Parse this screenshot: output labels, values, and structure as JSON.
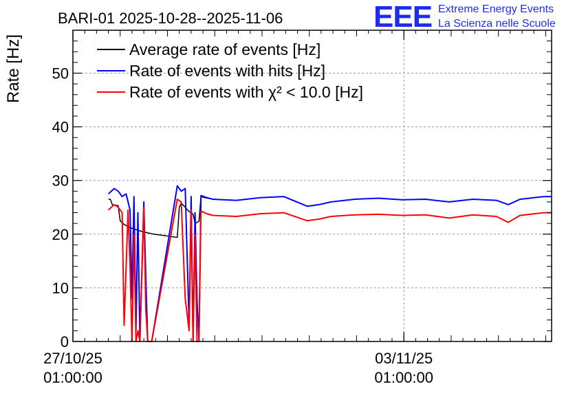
{
  "chart_data": {
    "type": "line",
    "title": "BARI-01 2025-10-28--2025-11-06",
    "ylabel": "Rate [Hz]",
    "xlabel": "",
    "ylim": [
      0,
      58
    ],
    "xlim": [
      "2025-10-27 01:00",
      "2025-11-06 04:00"
    ],
    "yticks": [
      0,
      10,
      20,
      30,
      40,
      50
    ],
    "xticks": [
      {
        "x": "2025-10-27 01:00",
        "date": "27/10/25",
        "time": "01:00:00"
      },
      {
        "x": "2025-11-03 01:00",
        "date": "03/11/25",
        "time": "01:00:00"
      }
    ],
    "grid": true,
    "legend": "top-left",
    "logo": {
      "letters": "EEE",
      "line1": "Extreme Energy Events",
      "line2": "La Scienza nelle Scuole"
    },
    "series": [
      {
        "name": "Average rate of events [Hz]",
        "color": "#000000",
        "x": [
          "2025-10-27 19:00",
          "2025-10-27 20:00",
          "2025-10-27 21:00",
          "2025-10-28 00:00",
          "2025-10-28 01:00",
          "2025-10-28 03:00",
          "2025-10-28 06:00",
          "2025-10-28 12:00",
          "2025-10-28 18:00",
          "2025-10-29 00:00",
          "2025-10-29 06:00",
          "2025-10-29 07:00",
          "2025-10-29 08:00",
          "2025-10-29 10:00",
          "2025-10-29 12:00",
          "2025-10-29 14:00",
          "2025-10-29 15:00",
          "2025-10-29 17:00",
          "2025-10-29 18:00",
          "2025-10-29 20:00",
          "2025-10-29 23:00"
        ],
        "y": [
          26.5,
          26.5,
          25.5,
          25.3,
          22.5,
          21.8,
          21.2,
          20.5,
          20.0,
          19.7,
          19.4,
          25.0,
          25.8,
          25.0,
          24.2,
          23.7,
          22.0,
          22.4,
          27.0,
          26.8,
          26.6
        ]
      },
      {
        "name": "Rate of events with hits [Hz]",
        "color": "#0000ff",
        "x": [
          "2025-10-27 19:00",
          "2025-10-27 22:00",
          "2025-10-28 00:00",
          "2025-10-28 02:00",
          "2025-10-28 04:00",
          "2025-10-28 06:00",
          "2025-10-28 07:00",
          "2025-10-28 08:00",
          "2025-10-28 09:00",
          "2025-10-28 10:00",
          "2025-10-28 11:00",
          "2025-10-28 13:00",
          "2025-10-28 14:00",
          "2025-10-28 15:00",
          "2025-10-28 17:00",
          "2025-10-29 06:00",
          "2025-10-29 08:00",
          "2025-10-29 10:00",
          "2025-10-29 12:00",
          "2025-10-29 13:00",
          "2025-10-29 14:00",
          "2025-10-29 15:00",
          "2025-10-29 16:00",
          "2025-10-29 17:00",
          "2025-10-29 18:00",
          "2025-10-29 21:00",
          "2025-10-30 00:00",
          "2025-10-30 12:00",
          "2025-10-31 00:00",
          "2025-10-31 12:00",
          "2025-11-01 00:00",
          "2025-11-01 06:00",
          "2025-11-01 12:00",
          "2025-11-02 00:00",
          "2025-11-02 12:00",
          "2025-11-03 00:00",
          "2025-11-03 12:00",
          "2025-11-04 00:00",
          "2025-11-04 12:00",
          "2025-11-05 00:00",
          "2025-11-05 06:00",
          "2025-11-05 12:00",
          "2025-11-06 00:00",
          "2025-11-06 04:00"
        ],
        "y": [
          27.5,
          28.5,
          28.0,
          27.0,
          27.5,
          24.5,
          8.0,
          27.0,
          2.0,
          24.0,
          0.0,
          26.0,
          12.0,
          0.0,
          0.0,
          29.0,
          28.0,
          28.5,
          3.0,
          27.0,
          0.0,
          24.0,
          8.0,
          0.0,
          27.2,
          26.8,
          26.5,
          26.3,
          26.8,
          27.0,
          25.2,
          25.5,
          26.0,
          26.5,
          26.7,
          26.4,
          26.5,
          26.0,
          26.5,
          26.3,
          25.5,
          26.5,
          27.0,
          27.0
        ]
      },
      {
        "name": "Rate of events with χ² < 10.0 [Hz]",
        "color": "#ff0000",
        "x": [
          "2025-10-27 19:00",
          "2025-10-27 22:00",
          "2025-10-28 00:00",
          "2025-10-28 02:00",
          "2025-10-28 03:00",
          "2025-10-28 05:00",
          "2025-10-28 06:00",
          "2025-10-28 07:00",
          "2025-10-28 08:00",
          "2025-10-28 09:00",
          "2025-10-28 10:00",
          "2025-10-28 11:00",
          "2025-10-28 13:00",
          "2025-10-28 14:00",
          "2025-10-28 15:00",
          "2025-10-28 17:00",
          "2025-10-29 06:00",
          "2025-10-29 08:00",
          "2025-10-29 10:00",
          "2025-10-29 12:00",
          "2025-10-29 13:00",
          "2025-10-29 14:00",
          "2025-10-29 15:00",
          "2025-10-29 16:00",
          "2025-10-29 17:00",
          "2025-10-29 18:00",
          "2025-10-29 21:00",
          "2025-10-30 00:00",
          "2025-10-30 12:00",
          "2025-10-31 00:00",
          "2025-10-31 12:00",
          "2025-11-01 00:00",
          "2025-11-01 06:00",
          "2025-11-01 12:00",
          "2025-11-02 00:00",
          "2025-11-02 12:00",
          "2025-11-03 00:00",
          "2025-11-03 12:00",
          "2025-11-04 00:00",
          "2025-11-04 12:00",
          "2025-11-05 00:00",
          "2025-11-05 06:00",
          "2025-11-05 12:00",
          "2025-11-06 00:00",
          "2025-11-06 04:00"
        ],
        "y": [
          24.5,
          25.5,
          25.0,
          24.0,
          3.0,
          24.5,
          14.0,
          0.0,
          20.0,
          0.0,
          2.0,
          0.0,
          25.0,
          6.0,
          0.0,
          0.0,
          26.5,
          26.0,
          8.0,
          2.0,
          24.5,
          0.0,
          20.0,
          0.0,
          0.0,
          24.3,
          23.8,
          23.5,
          23.3,
          23.8,
          24.0,
          22.5,
          22.8,
          23.3,
          23.6,
          23.7,
          23.5,
          23.6,
          23.0,
          23.6,
          23.3,
          22.2,
          23.5,
          24.0,
          24.0
        ]
      }
    ]
  }
}
